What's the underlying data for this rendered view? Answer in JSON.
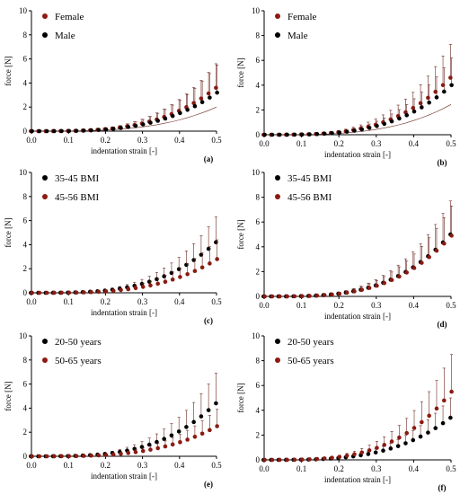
{
  "figure": {
    "colors": {
      "series_dark": "#000000",
      "series_red": "#8B1A12",
      "error_bar": "#6b2a22",
      "axis": "#000000"
    }
  },
  "chart_data": [
    {
      "type": "scatter",
      "panel_label": "(a)",
      "xlabel": "indentation strain [-]",
      "ylabel": "force [N]",
      "xlim": [
        0,
        0.5
      ],
      "ylim": [
        0,
        10
      ],
      "xticks": [
        "0.0",
        "0.1",
        "0.2",
        "0.3",
        "0.4",
        "0.5"
      ],
      "yticks": [
        "0",
        "2",
        "4",
        "6",
        "8",
        "10"
      ],
      "legend_position": "top-left",
      "series": [
        {
          "name": "Female",
          "color": "#8B1A12",
          "end_value": 3.6,
          "end_error": 2.0
        },
        {
          "name": "Male",
          "color": "#000000",
          "end_value": 3.2,
          "end_error": 2.3
        }
      ]
    },
    {
      "type": "scatter",
      "panel_label": "(b)",
      "xlabel": "indentation strain [-]",
      "ylabel": "force [N]",
      "xlim": [
        0,
        0.5
      ],
      "ylim": [
        0,
        10
      ],
      "xticks": [
        "0.0",
        "0.1",
        "0.2",
        "0.3",
        "0.4",
        "0.5"
      ],
      "yticks": [
        "0",
        "2",
        "4",
        "6",
        "8",
        "10"
      ],
      "legend_position": "top-left",
      "series": [
        {
          "name": "Female",
          "color": "#8B1A12",
          "end_value": 4.6,
          "end_error": 2.7
        },
        {
          "name": "Male",
          "color": "#000000",
          "end_value": 4.0,
          "end_error": 2.2
        }
      ]
    },
    {
      "type": "scatter",
      "panel_label": "(c)",
      "xlabel": "indentation strain [-]",
      "ylabel": "force [N]",
      "xlim": [
        0,
        0.5
      ],
      "ylim": [
        0,
        10
      ],
      "xticks": [
        "0.0",
        "0.1",
        "0.2",
        "0.3",
        "0.4",
        "0.5"
      ],
      "yticks": [
        "0",
        "2",
        "4",
        "6",
        "8",
        "10"
      ],
      "legend_position": "top-left",
      "series": [
        {
          "name": "35-45 BMI",
          "color": "#000000",
          "end_value": 4.2,
          "end_error": 2.1
        },
        {
          "name": "45-56 BMI",
          "color": "#8B1A12",
          "end_value": 2.8,
          "end_error": 1.6
        }
      ]
    },
    {
      "type": "scatter",
      "panel_label": "(d)",
      "xlabel": "indentation strain [-]",
      "ylabel": "force [N]",
      "xlim": [
        0,
        0.5
      ],
      "ylim": [
        0,
        10
      ],
      "xticks": [
        "0.0",
        "0.1",
        "0.2",
        "0.3",
        "0.4",
        "0.5"
      ],
      "yticks": [
        "0",
        "2",
        "4",
        "6",
        "8",
        "10"
      ],
      "legend_position": "top-left",
      "series": [
        {
          "name": "35-45 BMI",
          "color": "#000000",
          "end_value": 5.0,
          "end_error": 2.7
        },
        {
          "name": "45-56 BMI",
          "color": "#8B1A12",
          "end_value": 4.9,
          "end_error": 2.4
        }
      ]
    },
    {
      "type": "scatter",
      "panel_label": "(e)",
      "xlabel": "indentation strain [-]",
      "ylabel": "force [N]",
      "xlim": [
        0,
        0.5
      ],
      "ylim": [
        0,
        10
      ],
      "xticks": [
        "0.0",
        "0.1",
        "0.2",
        "0.3",
        "0.4",
        "0.5"
      ],
      "yticks": [
        "0",
        "2",
        "4",
        "6",
        "8",
        "10"
      ],
      "legend_position": "top-left",
      "series": [
        {
          "name": "20-50 years",
          "color": "#000000",
          "end_value": 4.4,
          "end_error": 2.5
        },
        {
          "name": "50-65 years",
          "color": "#8B1A12",
          "end_value": 2.5,
          "end_error": 1.4
        }
      ]
    },
    {
      "type": "scatter",
      "panel_label": "(f)",
      "xlabel": "indentation strain [-]",
      "ylabel": "force [N]",
      "xlim": [
        0,
        0.5
      ],
      "ylim": [
        0,
        10
      ],
      "xticks": [
        "0.0",
        "0.1",
        "0.2",
        "0.3",
        "0.4",
        "0.5"
      ],
      "yticks": [
        "0",
        "2",
        "4",
        "6",
        "8",
        "10"
      ],
      "legend_position": "top-left",
      "series": [
        {
          "name": "20-50 years",
          "color": "#000000",
          "end_value": 3.4,
          "end_error": 1.6
        },
        {
          "name": "50-65 years",
          "color": "#8B1A12",
          "end_value": 5.5,
          "end_error": 3.0
        }
      ]
    }
  ]
}
